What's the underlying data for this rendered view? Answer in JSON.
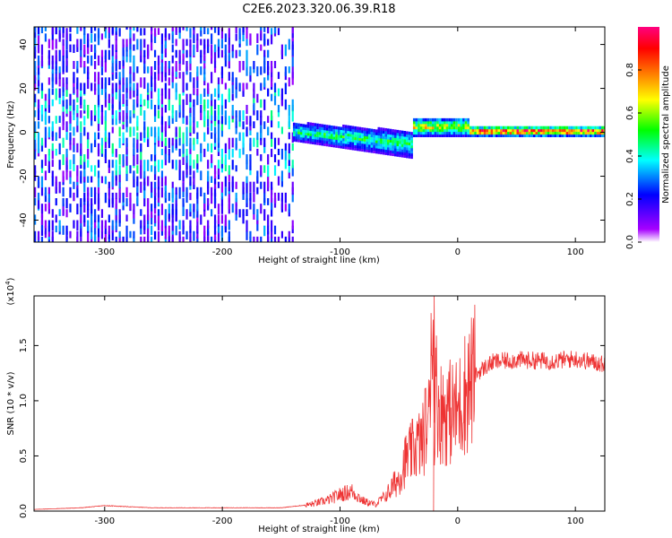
{
  "title": "C2E6.2023.320.06.39.R18",
  "chart_data": [
    {
      "type": "heatmap",
      "xlabel": "Height of straight line (km)",
      "ylabel": "Frequency (Hz)",
      "xlim": [
        -360,
        125
      ],
      "ylim": [
        -50,
        48
      ],
      "xticks": [
        -300,
        -200,
        -100,
        0,
        100
      ],
      "yticks": [
        -40,
        -20,
        0,
        20,
        40
      ],
      "colorbar": {
        "label": "Normalized spectral amplitude",
        "range": [
          0,
          1
        ],
        "ticks": [
          "0.0",
          "0.2",
          "0.4",
          "0.6",
          "0.8"
        ],
        "tick_values": [
          0.0,
          0.2,
          0.4,
          0.6,
          0.8
        ],
        "colors": [
          "#ffffff",
          "#a600ff",
          "#0000ff",
          "#00ffff",
          "#00ff00",
          "#ffff00",
          "#ff7f00",
          "#ff0000",
          "#ff0080"
        ]
      },
      "regions": [
        {
          "x": [
            -360,
            -140
          ],
          "freq": [
            -50,
            48
          ],
          "amplitude": 0.22,
          "description": "broadband diffuse"
        },
        {
          "x": [
            -140,
            -38
          ],
          "freq": [
            -12,
            6
          ],
          "amplitude": 0.5,
          "description": "narrowing band near 0 Hz"
        },
        {
          "x": [
            -38,
            10
          ],
          "freq": [
            -2,
            6
          ],
          "amplitude": 0.7
        },
        {
          "x": [
            10,
            125
          ],
          "freq": [
            -2,
            2
          ],
          "amplitude": 1.0,
          "description": "narrow line at 0 Hz"
        }
      ]
    },
    {
      "type": "line",
      "xlabel": "Height of straight line (km)",
      "ylabel": "SNR (10 * v/v)",
      "multiplier": "(x10",
      "multiplier_exp": "4",
      "multiplier_close": ")",
      "xlim": [
        -360,
        125
      ],
      "ylim": [
        0,
        19500
      ],
      "xticks": [
        -300,
        -200,
        -100,
        0,
        100
      ],
      "yticks": [
        0,
        5000,
        10000,
        15000
      ],
      "ytick_labels": [
        "0.0",
        "0.5",
        "1.0",
        "1.5"
      ],
      "color": "#ee3333",
      "series": [
        {
          "x": [
            -360,
            -320,
            -300,
            -260,
            -200,
            -150,
            -125,
            -110,
            -100,
            -90,
            -80,
            -70,
            -60,
            -50,
            -45,
            -40,
            -35,
            -30,
            -27,
            -25,
            -22,
            -20,
            -18,
            -15,
            -10,
            -5,
            0,
            5,
            10,
            15,
            20,
            30,
            50,
            80,
            100,
            125
          ],
          "y": [
            150,
            300,
            500,
            300,
            300,
            300,
            600,
            1000,
            1500,
            1800,
            900,
            600,
            1500,
            3000,
            4500,
            5200,
            6000,
            6200,
            8000,
            7000,
            19500,
            9000,
            11000,
            9000,
            9000,
            9000,
            9000,
            10500,
            11500,
            12300,
            12800,
            13500,
            13700,
            13600,
            13800,
            13300
          ]
        }
      ]
    }
  ]
}
